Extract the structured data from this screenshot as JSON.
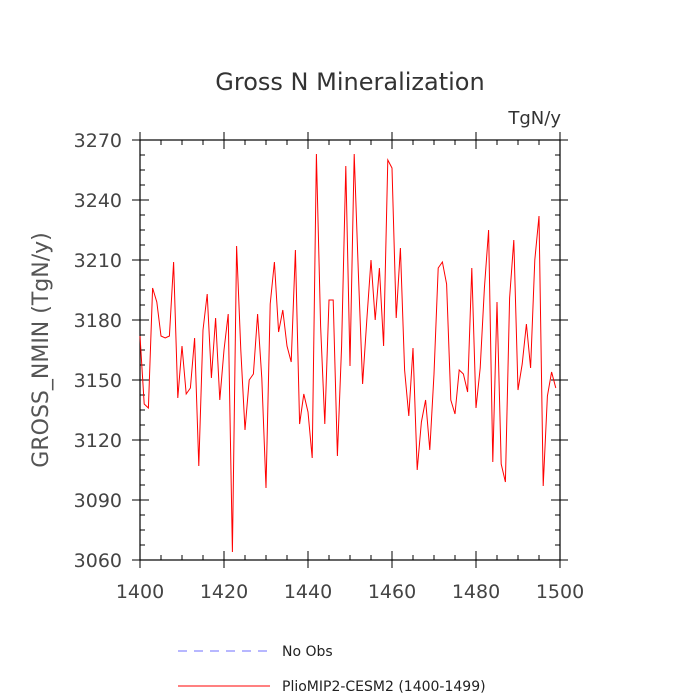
{
  "chart_data": {
    "type": "line",
    "title": "Gross N Mineralization",
    "units": "TgN/y",
    "xlabel": "",
    "ylabel": "GROSS_NMIN  (TgN/y)",
    "xlim": [
      1400,
      1500
    ],
    "ylim": [
      3060,
      3270
    ],
    "xticks": [
      1400,
      1420,
      1440,
      1460,
      1480,
      1500
    ],
    "yticks": [
      3060,
      3090,
      3120,
      3150,
      3180,
      3210,
      3240,
      3270
    ],
    "legend_position": "bottom",
    "legend": [
      {
        "label": "No Obs",
        "color": "#6f6fff",
        "style": "dashed"
      },
      {
        "label": "PlioMIP2-CESM2 (1400-1499)",
        "color": "#ff0000",
        "style": "solid"
      }
    ],
    "series": [
      {
        "name": "PlioMIP2-CESM2 (1400-1499)",
        "color": "#ff0000",
        "x": [
          1400,
          1401,
          1402,
          1403,
          1404,
          1405,
          1406,
          1407,
          1408,
          1409,
          1410,
          1411,
          1412,
          1413,
          1414,
          1415,
          1416,
          1417,
          1418,
          1419,
          1420,
          1421,
          1422,
          1423,
          1424,
          1425,
          1426,
          1427,
          1428,
          1429,
          1430,
          1431,
          1432,
          1433,
          1434,
          1435,
          1436,
          1437,
          1438,
          1439,
          1440,
          1441,
          1442,
          1443,
          1444,
          1445,
          1446,
          1447,
          1448,
          1449,
          1450,
          1451,
          1452,
          1453,
          1454,
          1455,
          1456,
          1457,
          1458,
          1459,
          1460,
          1461,
          1462,
          1463,
          1464,
          1465,
          1466,
          1467,
          1468,
          1469,
          1470,
          1471,
          1472,
          1473,
          1474,
          1475,
          1476,
          1477,
          1478,
          1479,
          1480,
          1481,
          1482,
          1483,
          1484,
          1485,
          1486,
          1487,
          1488,
          1489,
          1490,
          1491,
          1492,
          1493,
          1494,
          1495,
          1496,
          1497,
          1498,
          1499
        ],
        "values": [
          3172,
          3138,
          3136,
          3196,
          3189,
          3172,
          3171,
          3172,
          3209,
          3141,
          3167,
          3143,
          3146,
          3171,
          3107,
          3175,
          3193,
          3151,
          3181,
          3140,
          3165,
          3183,
          3064,
          3217,
          3165,
          3125,
          3150,
          3153,
          3183,
          3151,
          3096,
          3188,
          3209,
          3174,
          3185,
          3167,
          3159,
          3215,
          3128,
          3143,
          3134,
          3111,
          3263,
          3177,
          3128,
          3190,
          3190,
          3112,
          3167,
          3257,
          3157,
          3263,
          3203,
          3148,
          3180,
          3210,
          3180,
          3206,
          3167,
          3260,
          3256,
          3181,
          3216,
          3155,
          3132,
          3166,
          3105,
          3129,
          3140,
          3115,
          3153,
          3206,
          3209,
          3198,
          3140,
          3133,
          3155,
          3153,
          3144,
          3206,
          3136,
          3156,
          3196,
          3225,
          3109,
          3189,
          3108,
          3099,
          3191,
          3220,
          3145,
          3158,
          3178,
          3156,
          3210,
          3232,
          3097,
          3142,
          3154,
          3146
        ]
      }
    ]
  }
}
